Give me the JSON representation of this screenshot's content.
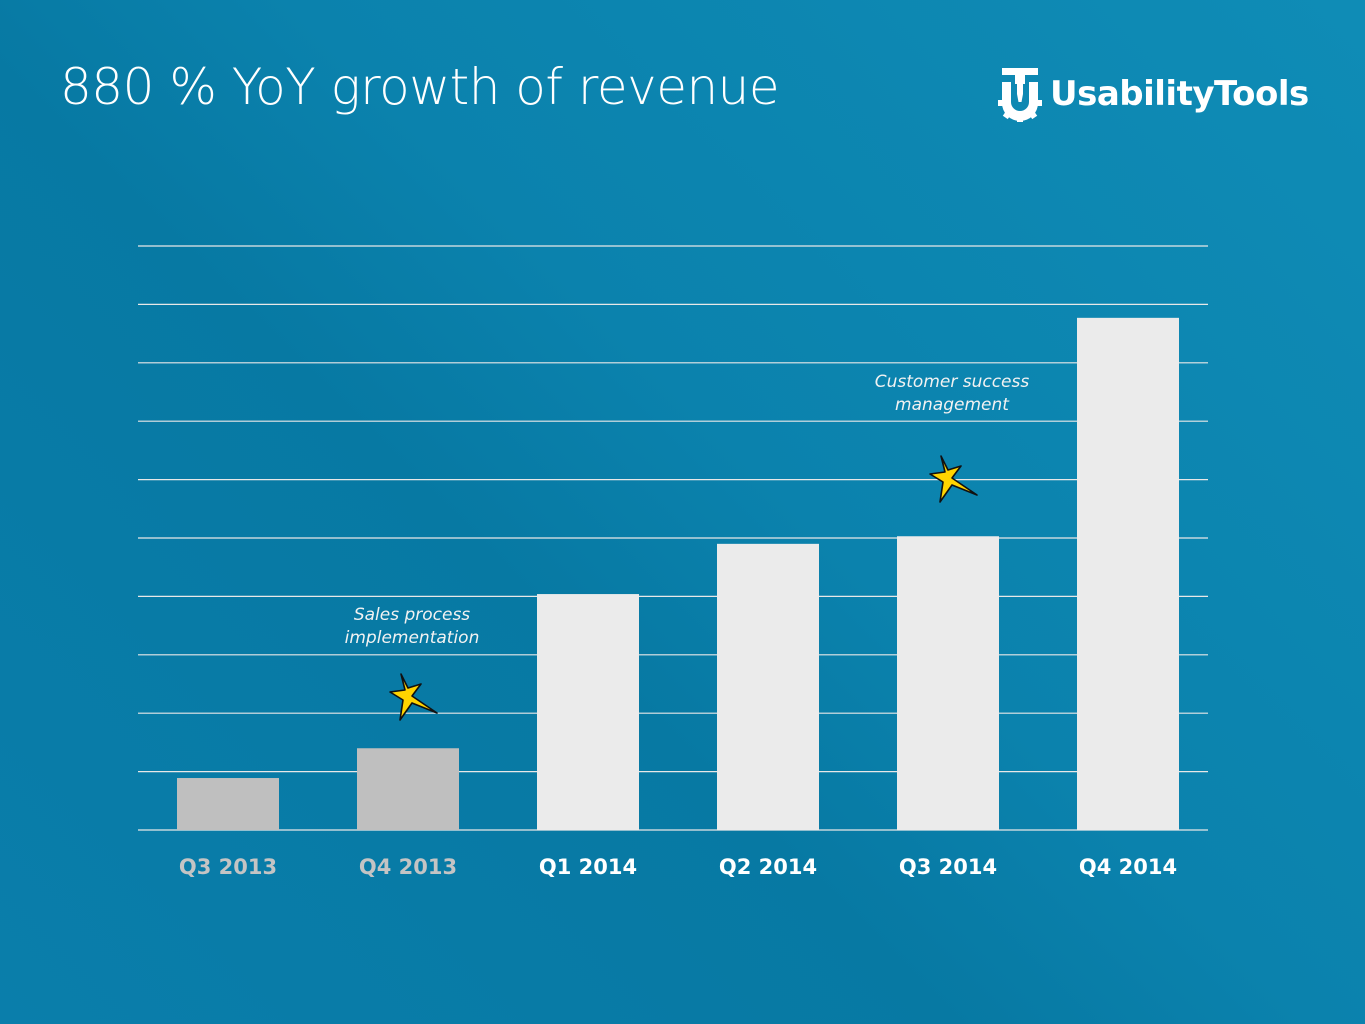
{
  "header": {
    "title": "880 % YoY growth of revenue",
    "logo_text": "UsabilityTools",
    "logo_icon": "ut-gear-logo-icon"
  },
  "colors": {
    "background": "#0b82ad",
    "gridline": "#e8e8e8",
    "bar_past": "#bfbfbf",
    "bar_current": "#ebebeb",
    "label_past": "#c4c4c4",
    "label_current": "#ffffff",
    "star_fill": "#ffd400",
    "star_stroke": "#111111"
  },
  "chart_data": {
    "type": "bar",
    "title": "880 % YoY growth of revenue",
    "xlabel": "",
    "ylabel": "",
    "categories": [
      "Q3 2013",
      "Q4 2013",
      "Q1 2014",
      "Q2 2014",
      "Q3 2014",
      "Q4 2014"
    ],
    "values": [
      0.89,
      1.4,
      4.04,
      4.9,
      5.03,
      8.77
    ],
    "highlight": [
      "past",
      "past",
      "current",
      "current",
      "current",
      "current"
    ],
    "ylim": [
      0,
      10
    ],
    "y_gridlines": [
      0,
      1,
      2,
      3,
      4,
      5,
      6,
      7,
      8,
      9,
      10
    ],
    "grid": true,
    "y_tick_labels_shown": false,
    "legend": "none",
    "annotations": [
      {
        "category": "Q4 2013",
        "lines": [
          "Sales process",
          "implementation"
        ],
        "marker": "star-icon"
      },
      {
        "category": "Q3 2014",
        "lines": [
          "Customer success",
          "management"
        ],
        "marker": "star-icon"
      }
    ]
  }
}
